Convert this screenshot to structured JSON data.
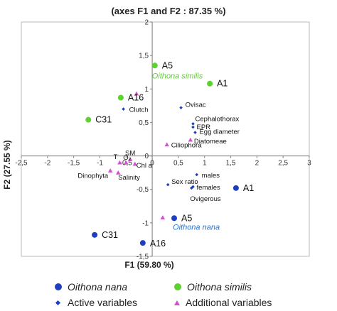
{
  "chart_data": {
    "type": "scatter",
    "title": "(axes F1 and F2 : 87.35 %)",
    "xlabel": "F1 (59.80 %)",
    "ylabel": "F2 (27.55 %)",
    "xlim": [
      -2.5,
      3
    ],
    "ylim": [
      -1.5,
      2
    ],
    "xticks": [
      "-2,5",
      "-2",
      "-1,5",
      "-1",
      "-0,5",
      "0",
      "0,5",
      "1",
      "1,5",
      "2",
      "2,5",
      "3"
    ],
    "xtick_values": [
      -2.5,
      -2,
      -1.5,
      -1,
      -0.5,
      0,
      0.5,
      1,
      1.5,
      2,
      2.5,
      3
    ],
    "yticks": [
      "-1,5",
      "-1",
      "-0,5",
      "0",
      "0,5",
      "1",
      "1,5",
      "2"
    ],
    "ytick_values": [
      -1.5,
      -1,
      -0.5,
      0,
      0.5,
      1,
      1.5,
      2
    ],
    "grid": false,
    "legend_position": "bottom",
    "colors": {
      "oithona_nana": "#1f3fbf",
      "oithona_similis": "#5cd12f",
      "active": "#1f3fbf",
      "additional": "#d24fd2"
    },
    "series": [
      {
        "name": "Oithona nana",
        "marker": "circle",
        "points": [
          {
            "label": "A1",
            "x": 1.6,
            "y": -0.48
          },
          {
            "label": "A5",
            "x": 0.42,
            "y": -0.93
          },
          {
            "label": "C31",
            "x": -1.1,
            "y": -1.18
          },
          {
            "label": "A16",
            "x": -0.18,
            "y": -1.3
          }
        ]
      },
      {
        "name": "Oithona similis",
        "marker": "circle",
        "points": [
          {
            "label": "A5",
            "x": 0.05,
            "y": 1.35
          },
          {
            "label": "A1",
            "x": 1.1,
            "y": 1.08
          },
          {
            "label": "A16",
            "x": -0.6,
            "y": 0.87
          },
          {
            "label": "C31",
            "x": -1.22,
            "y": 0.54
          }
        ]
      },
      {
        "name": "Active variables",
        "marker": "diamond",
        "points": [
          {
            "label": "Clutch",
            "x": -0.55,
            "y": 0.7
          },
          {
            "label": "Ovisac",
            "x": 0.55,
            "y": 0.72
          },
          {
            "label": "Cephalothorax",
            "x": 0.78,
            "y": 0.48
          },
          {
            "label": "EPR",
            "x": 0.78,
            "y": 0.43
          },
          {
            "label": "Egg diameter",
            "x": 0.82,
            "y": 0.35
          },
          {
            "label": "males",
            "x": 0.85,
            "y": -0.28
          },
          {
            "label": "Sex ratio",
            "x": 0.3,
            "y": -0.43
          },
          {
            "label": "females",
            "x": 0.78,
            "y": -0.46
          },
          {
            "label": "Ovigerous",
            "x": 0.75,
            "y": -0.48
          }
        ]
      },
      {
        "name": "Additional variables",
        "marker": "triangle",
        "points": [
          {
            "label": "",
            "x": -0.3,
            "y": 0.93
          },
          {
            "label": "Diatomeae",
            "x": 0.73,
            "y": 0.24
          },
          {
            "label": "Ciliophora",
            "x": 0.28,
            "y": 0.17
          },
          {
            "label": "T",
            "x": -0.62,
            "y": -0.1
          },
          {
            "label": "O₂",
            "x": -0.5,
            "y": -0.1
          },
          {
            "label": "SM",
            "x": -0.42,
            "y": -0.05
          },
          {
            "label": "Chl a",
            "x": -0.33,
            "y": -0.12
          },
          {
            "label": "Dinophyta",
            "x": -0.8,
            "y": -0.22
          },
          {
            "label": "Salinity",
            "x": -0.65,
            "y": -0.25
          },
          {
            "label": "",
            "x": 0.2,
            "y": -0.92
          }
        ]
      }
    ],
    "annotations": [
      {
        "text": "Oithona similis",
        "near": "A5"
      },
      {
        "text": "Oithona nana",
        "near": "A5"
      }
    ]
  },
  "legend": {
    "items": [
      {
        "label": "Oithona nana",
        "marker": "circle",
        "color": "#1f3fbf"
      },
      {
        "label": "Oithona similis",
        "marker": "circle",
        "color": "#5cd12f"
      },
      {
        "label": "Active variables",
        "marker": "diamond",
        "color": "#1f3fbf"
      },
      {
        "label": "Additional variables",
        "marker": "triangle",
        "color": "#d24fd2"
      }
    ]
  }
}
